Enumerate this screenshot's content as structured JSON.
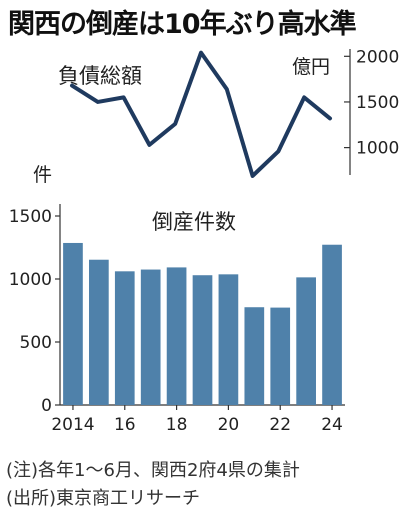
{
  "title": "関西の倒産は10年ぶり高水準",
  "chart_data": [
    {
      "type": "line",
      "title": "負債総額",
      "unit": "億円",
      "x": [
        2014,
        2015,
        2016,
        2017,
        2018,
        2019,
        2020,
        2021,
        2022,
        2023,
        2024
      ],
      "values": [
        1680,
        1500,
        1550,
        1030,
        1260,
        2040,
        1640,
        690,
        960,
        1550,
        1320
      ],
      "y_ticks": [
        "2000",
        "1500",
        "1000"
      ],
      "ylim": [
        700,
        2080
      ],
      "line_color": "#1f3a5f"
    },
    {
      "type": "bar",
      "title": "倒産件数",
      "unit": "件",
      "x": [
        2014,
        2015,
        2016,
        2017,
        2018,
        2019,
        2020,
        2021,
        2022,
        2023,
        2024
      ],
      "values": [
        1286,
        1153,
        1061,
        1075,
        1092,
        1030,
        1037,
        776,
        773,
        1013,
        1272
      ],
      "y_ticks": [
        "1500",
        "1000",
        "500",
        "0"
      ],
      "ylim": [
        0,
        1500
      ],
      "x_tick_labels": [
        "2014",
        "16",
        "18",
        "20",
        "22",
        "24"
      ],
      "bar_color": "#4f81aa"
    }
  ],
  "notes": [
    "(注)各年1～6月、関西2府4県の集計",
    "(出所)東京商工リサーチ"
  ]
}
